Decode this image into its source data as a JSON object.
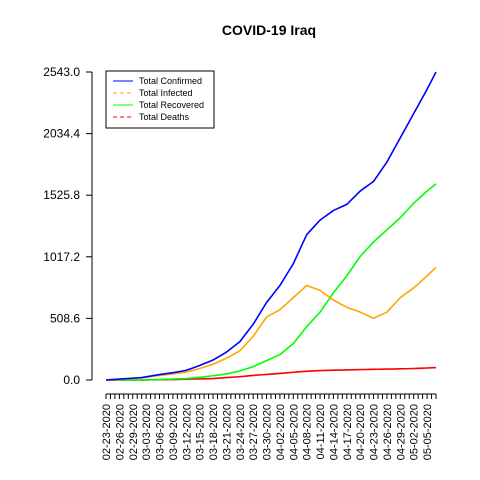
{
  "chart_data": {
    "type": "line",
    "title": "COVID-19 Iraq",
    "xlabel": "",
    "ylabel": "",
    "ylim": [
      0,
      2543.0
    ],
    "y_ticks": [
      "0.0",
      "508.6",
      "1017.2",
      "1525.8",
      "2034.4",
      "2543.0"
    ],
    "y_tick_values": [
      0,
      508.6,
      1017.2,
      1525.8,
      2034.4,
      2543.0
    ],
    "grid": false,
    "legend_position": "top-left",
    "x_tick_labels": [
      "02-23-2020",
      "02-26-2020",
      "02-29-2020",
      "03-03-2020",
      "03-06-2020",
      "03-09-2020",
      "03-12-2020",
      "03-15-2020",
      "03-18-2020",
      "03-21-2020",
      "03-24-2020",
      "03-27-2020",
      "03-30-2020",
      "04-02-2020",
      "04-05-2020",
      "04-08-2020",
      "04-11-2020",
      "04-14-2020",
      "04-17-2020",
      "04-20-2020",
      "04-23-2020",
      "04-26-2020",
      "04-29-2020",
      "05-02-2020",
      "05-05-2020"
    ],
    "x_start": "02-23-2020",
    "x_end": "05-07-2020",
    "series": [
      {
        "name": "Total Confirmed",
        "color": "#0000ff",
        "dash": "solid",
        "anchors": [
          [
            "02-23-2020",
            0
          ],
          [
            "03-02-2020",
            20
          ],
          [
            "03-06-2020",
            45
          ],
          [
            "03-09-2020",
            60
          ],
          [
            "03-12-2020",
            80
          ],
          [
            "03-15-2020",
            120
          ],
          [
            "03-18-2020",
            165
          ],
          [
            "03-21-2020",
            230
          ],
          [
            "03-24-2020",
            316
          ],
          [
            "03-27-2020",
            460
          ],
          [
            "03-30-2020",
            640
          ],
          [
            "04-02-2020",
            780
          ],
          [
            "04-05-2020",
            960
          ],
          [
            "04-08-2020",
            1200
          ],
          [
            "04-11-2020",
            1320
          ],
          [
            "04-14-2020",
            1400
          ],
          [
            "04-17-2020",
            1450
          ],
          [
            "04-20-2020",
            1560
          ],
          [
            "04-23-2020",
            1640
          ],
          [
            "04-26-2020",
            1800
          ],
          [
            "04-29-2020",
            2000
          ],
          [
            "05-02-2020",
            2200
          ],
          [
            "05-05-2020",
            2400
          ],
          [
            "05-07-2020",
            2543
          ]
        ]
      },
      {
        "name": "Total Infected",
        "color": "#ffa500",
        "dash": "dashed",
        "anchors": [
          [
            "02-23-2020",
            0
          ],
          [
            "03-02-2020",
            18
          ],
          [
            "03-06-2020",
            38
          ],
          [
            "03-09-2020",
            50
          ],
          [
            "03-12-2020",
            65
          ],
          [
            "03-15-2020",
            95
          ],
          [
            "03-18-2020",
            130
          ],
          [
            "03-21-2020",
            180
          ],
          [
            "03-24-2020",
            240
          ],
          [
            "03-27-2020",
            360
          ],
          [
            "03-30-2020",
            520
          ],
          [
            "04-02-2020",
            580
          ],
          [
            "04-05-2020",
            680
          ],
          [
            "04-08-2020",
            780
          ],
          [
            "04-11-2020",
            740
          ],
          [
            "04-14-2020",
            660
          ],
          [
            "04-17-2020",
            600
          ],
          [
            "04-20-2020",
            560
          ],
          [
            "04-23-2020",
            510
          ],
          [
            "04-26-2020",
            560
          ],
          [
            "04-29-2020",
            680
          ],
          [
            "05-02-2020",
            760
          ],
          [
            "05-05-2020",
            860
          ],
          [
            "05-07-2020",
            930
          ]
        ]
      },
      {
        "name": "Total Recovered",
        "color": "#00ff00",
        "dash": "solid",
        "anchors": [
          [
            "02-23-2020",
            0
          ],
          [
            "03-02-2020",
            0
          ],
          [
            "03-06-2020",
            4
          ],
          [
            "03-09-2020",
            8
          ],
          [
            "03-12-2020",
            12
          ],
          [
            "03-15-2020",
            22
          ],
          [
            "03-18-2020",
            35
          ],
          [
            "03-21-2020",
            50
          ],
          [
            "03-24-2020",
            75
          ],
          [
            "03-27-2020",
            110
          ],
          [
            "03-30-2020",
            160
          ],
          [
            "04-02-2020",
            210
          ],
          [
            "04-05-2020",
            300
          ],
          [
            "04-08-2020",
            440
          ],
          [
            "04-11-2020",
            560
          ],
          [
            "04-14-2020",
            720
          ],
          [
            "04-17-2020",
            860
          ],
          [
            "04-20-2020",
            1020
          ],
          [
            "04-23-2020",
            1140
          ],
          [
            "04-26-2020",
            1240
          ],
          [
            "04-29-2020",
            1340
          ],
          [
            "05-02-2020",
            1460
          ],
          [
            "05-05-2020",
            1560
          ],
          [
            "05-07-2020",
            1620
          ]
        ]
      },
      {
        "name": "Total Deaths",
        "color": "#ff0000",
        "dash": "dashed",
        "anchors": [
          [
            "02-23-2020",
            0
          ],
          [
            "03-02-2020",
            0
          ],
          [
            "03-06-2020",
            2
          ],
          [
            "03-09-2020",
            4
          ],
          [
            "03-12-2020",
            7
          ],
          [
            "03-15-2020",
            9
          ],
          [
            "03-18-2020",
            12
          ],
          [
            "03-21-2020",
            20
          ],
          [
            "03-24-2020",
            27
          ],
          [
            "03-27-2020",
            38
          ],
          [
            "03-30-2020",
            46
          ],
          [
            "04-02-2020",
            54
          ],
          [
            "04-05-2020",
            64
          ],
          [
            "04-08-2020",
            72
          ],
          [
            "04-11-2020",
            78
          ],
          [
            "04-14-2020",
            81
          ],
          [
            "04-17-2020",
            83
          ],
          [
            "04-20-2020",
            86
          ],
          [
            "04-23-2020",
            88
          ],
          [
            "04-26-2020",
            90
          ],
          [
            "04-29-2020",
            92
          ],
          [
            "05-02-2020",
            95
          ],
          [
            "05-05-2020",
            99
          ],
          [
            "05-07-2020",
            103
          ]
        ]
      }
    ]
  }
}
